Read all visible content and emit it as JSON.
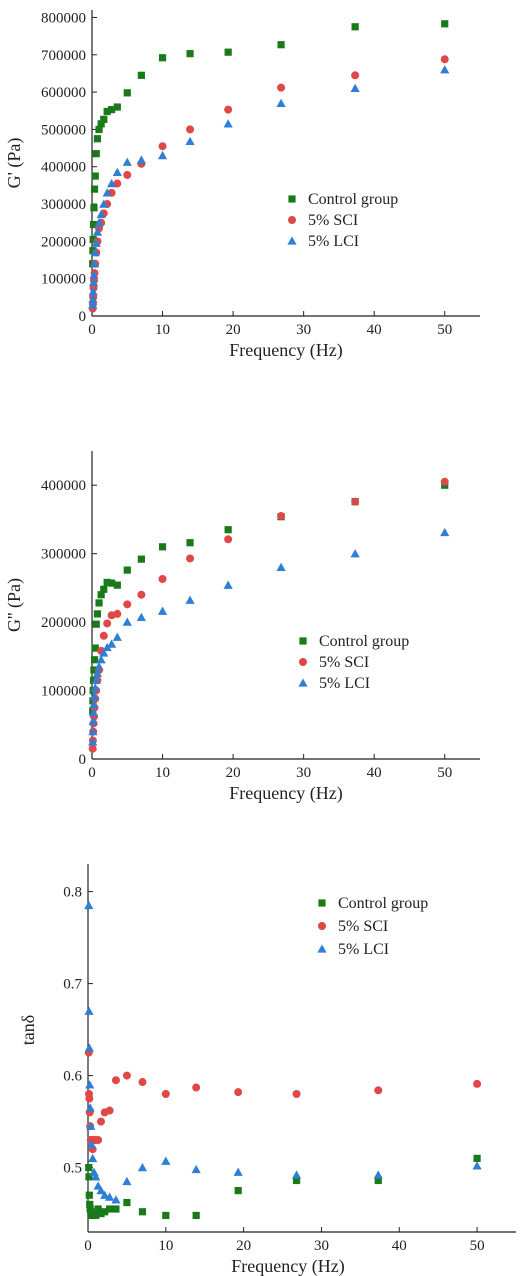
{
  "colors": {
    "control": "#1a7a1a",
    "sci": "#e04848",
    "lci": "#2f7fd4"
  },
  "chart_data": [
    {
      "type": "scatter",
      "id": "gprime",
      "xlabel": "Frequency (Hz)",
      "ylabel": "G' (Pa)",
      "xlim": [
        0,
        55
      ],
      "ylim": [
        0,
        820000
      ],
      "xticks": [
        0,
        10,
        20,
        30,
        40,
        50
      ],
      "yticks": [
        0,
        100000,
        200000,
        300000,
        400000,
        500000,
        600000,
        700000,
        800000
      ],
      "legend_position": "center-right",
      "series": [
        {
          "name": "Control group",
          "marker": "square",
          "color_key": "control",
          "x": [
            0.1,
            0.13,
            0.17,
            0.22,
            0.28,
            0.36,
            0.46,
            0.6,
            0.77,
            1.0,
            1.3,
            1.67,
            2.15,
            2.78,
            3.59,
            5.0,
            7.0,
            10.0,
            13.9,
            19.3,
            26.8,
            37.3,
            50.0
          ],
          "y": [
            140000,
            175000,
            205000,
            245000,
            290000,
            340000,
            375000,
            435000,
            475000,
            500000,
            515000,
            527000,
            548000,
            553000,
            560000,
            598000,
            645000,
            692000,
            703000,
            707000,
            727000,
            775000,
            783000
          ]
        },
        {
          "name": "5% SCI",
          "marker": "circle",
          "color_key": "sci",
          "x": [
            0.1,
            0.13,
            0.17,
            0.22,
            0.28,
            0.36,
            0.46,
            0.6,
            0.77,
            1.0,
            1.3,
            1.67,
            2.15,
            2.78,
            3.59,
            5.0,
            7.0,
            10.0,
            13.9,
            19.3,
            26.8,
            37.3,
            50.0
          ],
          "y": [
            20000,
            32000,
            50000,
            75000,
            95000,
            115000,
            140000,
            170000,
            200000,
            235000,
            250000,
            275000,
            300000,
            330000,
            355000,
            378000,
            408000,
            455000,
            500000,
            553000,
            612000,
            645000,
            688000
          ]
        },
        {
          "name": "5% LCI",
          "marker": "triangle",
          "color_key": "lci",
          "x": [
            0.1,
            0.13,
            0.17,
            0.22,
            0.28,
            0.36,
            0.46,
            0.6,
            0.77,
            1.0,
            1.3,
            1.67,
            2.15,
            2.78,
            3.59,
            5.0,
            7.0,
            10.0,
            13.9,
            19.3,
            26.8,
            37.3,
            50.0
          ],
          "y": [
            30000,
            45000,
            65000,
            90000,
            110000,
            140000,
            170000,
            195000,
            225000,
            250000,
            272000,
            300000,
            330000,
            355000,
            385000,
            412000,
            418000,
            430000,
            468000,
            515000,
            570000,
            610000,
            660000
          ]
        }
      ]
    },
    {
      "type": "scatter",
      "id": "gdoubleprime",
      "xlabel": "Frequency (Hz)",
      "ylabel": "G'' (Pa)",
      "xlim": [
        0,
        55
      ],
      "ylim": [
        0,
        450000
      ],
      "xticks": [
        0,
        10,
        20,
        30,
        40,
        50
      ],
      "yticks": [
        0,
        100000,
        200000,
        300000,
        400000
      ],
      "legend_position": "center-right",
      "series": [
        {
          "name": "Control group",
          "marker": "square",
          "color_key": "control",
          "x": [
            0.1,
            0.13,
            0.17,
            0.22,
            0.28,
            0.36,
            0.46,
            0.6,
            0.77,
            1.0,
            1.3,
            1.67,
            2.15,
            2.78,
            3.59,
            5.0,
            7.0,
            10.0,
            13.9,
            19.3,
            26.8,
            37.3,
            50.0
          ],
          "y": [
            70000,
            85000,
            100000,
            115000,
            130000,
            145000,
            162000,
            197000,
            212000,
            228000,
            240000,
            248000,
            258000,
            257000,
            254000,
            276000,
            292000,
            310000,
            316000,
            335000,
            354000,
            376000,
            400000
          ]
        },
        {
          "name": "5% SCI",
          "marker": "circle",
          "color_key": "sci",
          "x": [
            0.1,
            0.13,
            0.17,
            0.22,
            0.28,
            0.36,
            0.46,
            0.6,
            0.77,
            1.0,
            1.3,
            1.67,
            2.15,
            2.78,
            3.59,
            5.0,
            7.0,
            10.0,
            13.9,
            19.3,
            26.8,
            37.3,
            50.0
          ],
          "y": [
            15000,
            27000,
            40000,
            52000,
            62000,
            75000,
            88000,
            100000,
            115000,
            130000,
            158000,
            180000,
            198000,
            210000,
            212000,
            226000,
            240000,
            263000,
            293000,
            321000,
            355000,
            376000,
            405000
          ]
        },
        {
          "name": "5% LCI",
          "marker": "triangle",
          "color_key": "lci",
          "x": [
            0.1,
            0.13,
            0.17,
            0.22,
            0.28,
            0.36,
            0.46,
            0.6,
            0.77,
            1.0,
            1.3,
            1.67,
            2.15,
            2.78,
            3.59,
            5.0,
            7.0,
            10.0,
            13.9,
            19.3,
            26.8,
            37.3,
            50.0
          ],
          "y": [
            25000,
            40000,
            55000,
            68000,
            80000,
            92000,
            104000,
            115000,
            125000,
            135000,
            145000,
            155000,
            163000,
            168000,
            178000,
            200000,
            207000,
            216000,
            232000,
            254000,
            280000,
            300000,
            331000
          ]
        }
      ]
    },
    {
      "type": "scatter",
      "id": "tandelta",
      "xlabel": "Frequency (Hz)",
      "ylabel": "tanδ",
      "xlim": [
        0,
        55
      ],
      "ylim": [
        0.43,
        0.83
      ],
      "xticks": [
        0,
        10,
        20,
        30,
        40,
        50
      ],
      "yticks": [
        0.5,
        0.6,
        0.7,
        0.8
      ],
      "ytick_labels": [
        "0.5",
        "0.6",
        "0.7",
        "0.8"
      ],
      "legend_position": "top-right",
      "series": [
        {
          "name": "Control group",
          "marker": "square",
          "color_key": "control",
          "x": [
            0.1,
            0.13,
            0.17,
            0.22,
            0.28,
            0.36,
            0.46,
            0.6,
            0.77,
            1.0,
            1.3,
            1.67,
            2.15,
            2.78,
            3.59,
            5.0,
            7.0,
            10.0,
            13.9,
            19.3,
            26.8,
            37.3,
            50.0
          ],
          "y": [
            0.5,
            0.49,
            0.47,
            0.46,
            0.455,
            0.452,
            0.448,
            0.45,
            0.449,
            0.448,
            0.455,
            0.45,
            0.452,
            0.455,
            0.455,
            0.462,
            0.452,
            0.448,
            0.448,
            0.475,
            0.486,
            0.486,
            0.51
          ]
        },
        {
          "name": "5% SCI",
          "marker": "circle",
          "color_key": "sci",
          "x": [
            0.1,
            0.13,
            0.17,
            0.22,
            0.28,
            0.36,
            0.46,
            0.6,
            0.77,
            1.0,
            1.3,
            1.67,
            2.15,
            2.78,
            3.59,
            5.0,
            7.0,
            10.0,
            13.9,
            19.3,
            26.8,
            37.3,
            50.0
          ],
          "y": [
            0.625,
            0.58,
            0.575,
            0.56,
            0.545,
            0.53,
            0.53,
            0.52,
            0.53,
            0.53,
            0.53,
            0.55,
            0.56,
            0.562,
            0.595,
            0.6,
            0.593,
            0.58,
            0.587,
            0.582,
            0.58,
            0.584,
            0.591
          ]
        },
        {
          "name": "5% LCI",
          "marker": "triangle",
          "color_key": "lci",
          "x": [
            0.1,
            0.13,
            0.17,
            0.22,
            0.28,
            0.36,
            0.46,
            0.6,
            0.77,
            1.0,
            1.3,
            1.67,
            2.15,
            2.78,
            3.59,
            5.0,
            7.0,
            10.0,
            13.9,
            19.3,
            26.8,
            37.3,
            50.0
          ],
          "y": [
            0.785,
            0.67,
            0.63,
            0.59,
            0.565,
            0.545,
            0.525,
            0.51,
            0.495,
            0.49,
            0.48,
            0.475,
            0.47,
            0.468,
            0.465,
            0.485,
            0.5,
            0.507,
            0.498,
            0.495,
            0.492,
            0.492,
            0.502
          ]
        }
      ]
    }
  ]
}
